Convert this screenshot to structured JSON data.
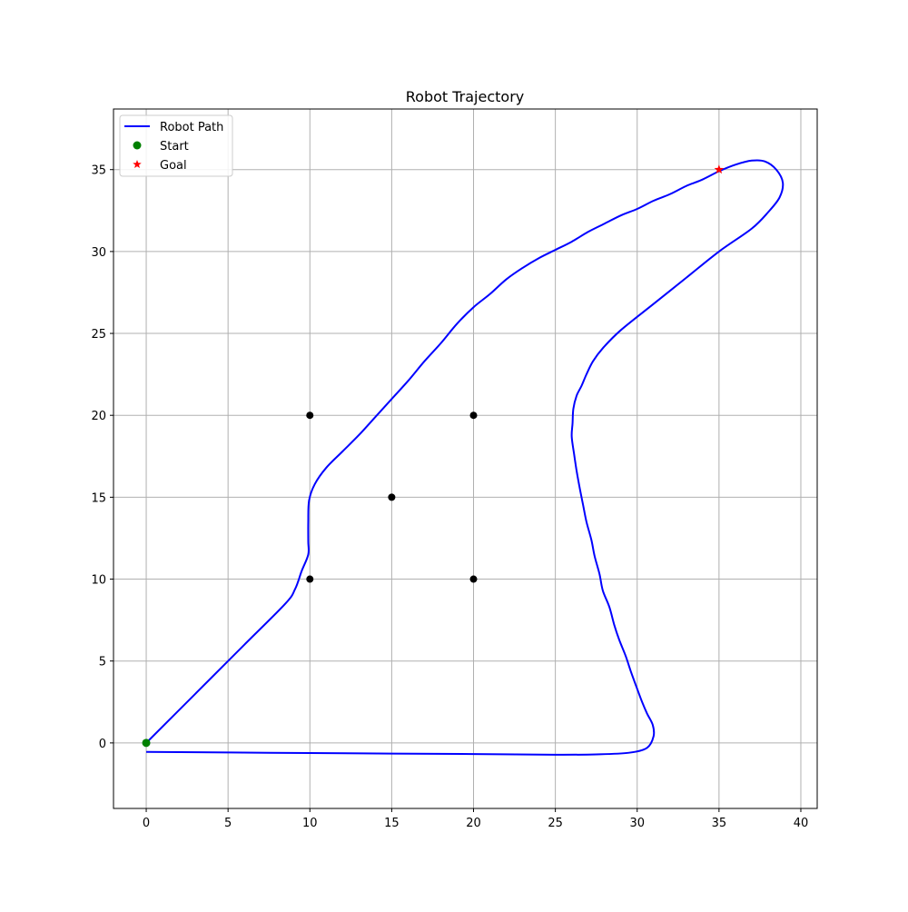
{
  "chart_data": {
    "type": "line",
    "title": "Robot Trajectory",
    "xlabel": "",
    "ylabel": "",
    "xlim": [
      -2,
      41
    ],
    "ylim": [
      -4,
      38.7
    ],
    "xticks": [
      0,
      5,
      10,
      15,
      20,
      25,
      30,
      35,
      40
    ],
    "yticks": [
      0,
      5,
      10,
      15,
      20,
      25,
      30,
      35
    ],
    "grid": true,
    "legend_position": "upper-left",
    "series": [
      {
        "name": "Robot Path",
        "kind": "line",
        "color": "#0000ff",
        "points": [
          [
            0,
            0
          ],
          [
            3,
            3
          ],
          [
            6,
            6
          ],
          [
            8.5,
            8.5
          ],
          [
            9.1,
            9.4
          ],
          [
            9.5,
            10.5
          ],
          [
            9.9,
            11.5
          ],
          [
            9.9,
            12.3
          ],
          [
            9.9,
            13.5
          ],
          [
            9.95,
            14.8
          ],
          [
            10.3,
            15.8
          ],
          [
            11.0,
            16.8
          ],
          [
            12.0,
            17.8
          ],
          [
            13.0,
            18.8
          ],
          [
            14.0,
            19.9
          ],
          [
            15.0,
            21.0
          ],
          [
            16.0,
            22.1
          ],
          [
            17.0,
            23.3
          ],
          [
            18.0,
            24.4
          ],
          [
            19.0,
            25.6
          ],
          [
            20.0,
            26.6
          ],
          [
            21.0,
            27.4
          ],
          [
            22.0,
            28.3
          ],
          [
            23.0,
            29.0
          ],
          [
            24.0,
            29.6
          ],
          [
            25.0,
            30.1
          ],
          [
            26.0,
            30.6
          ],
          [
            27.0,
            31.2
          ],
          [
            28.0,
            31.7
          ],
          [
            29.0,
            32.2
          ],
          [
            30.0,
            32.6
          ],
          [
            31.0,
            33.1
          ],
          [
            32.0,
            33.5
          ],
          [
            33.0,
            34.0
          ],
          [
            34.0,
            34.4
          ],
          [
            35.0,
            34.9
          ],
          [
            36.0,
            35.3
          ],
          [
            37.0,
            35.55
          ],
          [
            37.8,
            35.5
          ],
          [
            38.5,
            35.0
          ],
          [
            38.9,
            34.2
          ],
          [
            38.7,
            33.3
          ],
          [
            38.0,
            32.4
          ],
          [
            37.0,
            31.4
          ],
          [
            35.0,
            30.0
          ],
          [
            33.0,
            28.4
          ],
          [
            31.0,
            26.8
          ],
          [
            29.0,
            25.2
          ],
          [
            27.9,
            24.1
          ],
          [
            27.3,
            23.3
          ],
          [
            26.9,
            22.5
          ],
          [
            26.6,
            21.8
          ],
          [
            26.3,
            21.2
          ],
          [
            26.1,
            20.4
          ],
          [
            26.05,
            19.5
          ],
          [
            26.0,
            18.7
          ],
          [
            26.15,
            17.6
          ],
          [
            26.3,
            16.6
          ],
          [
            26.5,
            15.5
          ],
          [
            26.7,
            14.5
          ],
          [
            26.9,
            13.5
          ],
          [
            27.2,
            12.4
          ],
          [
            27.4,
            11.4
          ],
          [
            27.7,
            10.3
          ],
          [
            27.9,
            9.3
          ],
          [
            28.3,
            8.3
          ],
          [
            28.6,
            7.2
          ],
          [
            28.9,
            6.3
          ],
          [
            29.3,
            5.3
          ],
          [
            29.6,
            4.4
          ],
          [
            30.0,
            3.3
          ],
          [
            30.3,
            2.5
          ],
          [
            30.6,
            1.8
          ],
          [
            30.95,
            1.1
          ],
          [
            31.0,
            0.4
          ],
          [
            30.6,
            -0.3
          ],
          [
            29.5,
            -0.6
          ],
          [
            27.5,
            -0.7
          ],
          [
            25.0,
            -0.72
          ],
          [
            20.0,
            -0.68
          ],
          [
            15.0,
            -0.65
          ],
          [
            10.0,
            -0.62
          ],
          [
            5.0,
            -0.58
          ],
          [
            0.0,
            -0.55
          ]
        ]
      },
      {
        "name": "Start",
        "kind": "scatter",
        "marker": "circle",
        "color": "#008000",
        "points": [
          [
            0,
            0
          ]
        ]
      },
      {
        "name": "Goal",
        "kind": "scatter",
        "marker": "star",
        "color": "#ff0000",
        "points": [
          [
            35,
            35
          ]
        ]
      },
      {
        "name": "",
        "kind": "scatter",
        "marker": "circle",
        "color": "#000000",
        "points": [
          [
            10,
            10
          ],
          [
            10,
            20
          ],
          [
            15,
            15
          ],
          [
            20,
            10
          ],
          [
            20,
            20
          ]
        ]
      }
    ]
  }
}
